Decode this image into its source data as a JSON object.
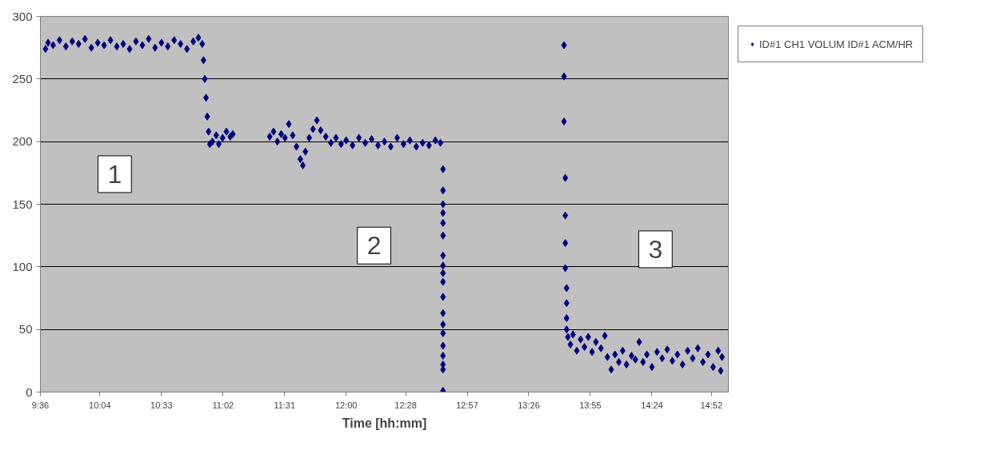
{
  "chart_data": {
    "type": "scatter",
    "xlabel": "Time [hh:mm]",
    "x": [
      9.64,
      9.66,
      9.7,
      9.75,
      9.8,
      9.85,
      9.9,
      9.95,
      10.0,
      10.05,
      10.1,
      10.15,
      10.2,
      10.25,
      10.3,
      10.35,
      10.4,
      10.45,
      10.5,
      10.55,
      10.6,
      10.65,
      10.7,
      10.75,
      10.8,
      10.84,
      10.87,
      10.88,
      10.89,
      10.9,
      10.91,
      10.92,
      10.93,
      10.95,
      10.98,
      11.0,
      11.03,
      11.06,
      11.09,
      11.11,
      11.4,
      11.43,
      11.46,
      11.49,
      11.52,
      11.55,
      11.58,
      11.61,
      11.64,
      11.66,
      11.68,
      11.71,
      11.74,
      11.77,
      11.8,
      11.84,
      11.88,
      11.92,
      11.96,
      12.0,
      12.05,
      12.1,
      12.15,
      12.2,
      12.25,
      12.3,
      12.35,
      12.4,
      12.45,
      12.5,
      12.55,
      12.6,
      12.65,
      12.7,
      12.74,
      12.76,
      12.76,
      12.76,
      12.76,
      12.76,
      12.76,
      12.76,
      12.76,
      12.76,
      12.76,
      12.76,
      12.76,
      12.76,
      12.76,
      12.76,
      12.76,
      12.76,
      12.76,
      12.76,
      13.71,
      13.71,
      13.71,
      13.72,
      13.72,
      13.72,
      13.72,
      13.73,
      13.73,
      13.73,
      13.73,
      13.74,
      13.76,
      13.78,
      13.81,
      13.84,
      13.87,
      13.9,
      13.93,
      13.96,
      14.0,
      14.03,
      14.05,
      14.08,
      14.11,
      14.14,
      14.17,
      14.2,
      14.24,
      14.27,
      14.3,
      14.33,
      14.36,
      14.4,
      14.44,
      14.48,
      14.52,
      14.56,
      14.6,
      14.64,
      14.68,
      14.72,
      14.76,
      14.8,
      14.84,
      14.88,
      14.92,
      14.94,
      14.95
    ],
    "series": [
      {
        "name": "ID#1 CH1 VOLUM ID#1 ACM/HR",
        "color": "#000080",
        "values": [
          274,
          279,
          277,
          281,
          276,
          280,
          278,
          282,
          275,
          279,
          277,
          281,
          276,
          278,
          274,
          280,
          277,
          282,
          275,
          279,
          276,
          281,
          278,
          274,
          280,
          283,
          278,
          265,
          250,
          235,
          220,
          208,
          198,
          200,
          205,
          198,
          203,
          208,
          204,
          206,
          204,
          208,
          200,
          206,
          203,
          214,
          205,
          196,
          186,
          181,
          192,
          203,
          210,
          217,
          209,
          204,
          199,
          203,
          198,
          201,
          197,
          203,
          199,
          202,
          197,
          200,
          196,
          203,
          198,
          201,
          196,
          199,
          197,
          201,
          199,
          178,
          161,
          150,
          143,
          135,
          125,
          109,
          101,
          95,
          88,
          76,
          63,
          54,
          47,
          37,
          29,
          22,
          18,
          1,
          277,
          252,
          216,
          171,
          141,
          119,
          99,
          83,
          71,
          59,
          50,
          44,
          38,
          46,
          33,
          42,
          36,
          44,
          32,
          40,
          35,
          45,
          28,
          18,
          30,
          24,
          33,
          22,
          29,
          26,
          40,
          24,
          30,
          20,
          32,
          27,
          34,
          25,
          30,
          22,
          33,
          27,
          35,
          24,
          30,
          20,
          33,
          17,
          28
        ]
      }
    ],
    "xlim": [
      9.6,
      15.0
    ],
    "xticks": [
      {
        "value": 9.6,
        "label": "9:36"
      },
      {
        "value": 10.0667,
        "label": "10:04"
      },
      {
        "value": 10.55,
        "label": "10:33"
      },
      {
        "value": 11.0333,
        "label": "11:02"
      },
      {
        "value": 11.5167,
        "label": "11:31"
      },
      {
        "value": 12.0,
        "label": "12:00"
      },
      {
        "value": 12.4667,
        "label": "12:28"
      },
      {
        "value": 12.95,
        "label": "12:57"
      },
      {
        "value": 13.4333,
        "label": "13:26"
      },
      {
        "value": 13.9167,
        "label": "13:55"
      },
      {
        "value": 14.4,
        "label": "14:24"
      },
      {
        "value": 14.8667,
        "label": "14:52"
      }
    ],
    "ylim": [
      0,
      300
    ],
    "yticks": [
      0,
      50,
      100,
      150,
      200,
      250,
      300
    ],
    "annotations": [
      "1",
      "2",
      "3"
    ],
    "grid": "y",
    "legend": "right",
    "marker": "diamond"
  }
}
